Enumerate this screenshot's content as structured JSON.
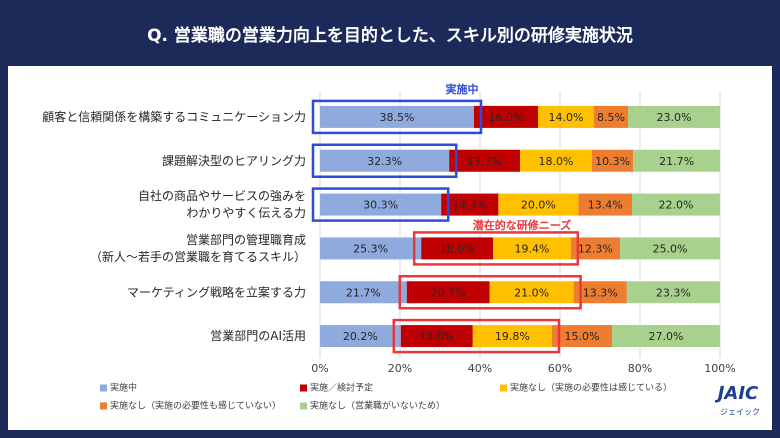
{
  "chart_data": {
    "type": "stacked-bar-horizontal",
    "title": "Q. 営業職の営業力向上を目的とした、スキル別の研修実施状況",
    "categories": [
      "顧客と信頼関係を構築するコミュニケーション力",
      "課題解決型のヒアリング力",
      "自社の商品やサービスの強みを\nわかりやすく伝える力",
      "営業部門の管理職育成\n（新人～若手の営業職を育てるスキル）",
      "マーケティング戦略を立案する力",
      "営業部門のAI活用"
    ],
    "series": [
      {
        "name": "実施中",
        "color": "#8faadc",
        "values": [
          38.5,
          32.3,
          30.3,
          25.3,
          21.7,
          20.2
        ],
        "value_labels": [
          "38.5%",
          "32.3%",
          "30.3%",
          "25.3%",
          "21.7%",
          "20.2%"
        ]
      },
      {
        "name": "実施／検討予定",
        "color": "#c00000",
        "values": [
          16.0,
          17.7,
          14.3,
          18.0,
          20.7,
          18.0
        ],
        "value_labels": [
          "16.0%",
          "17.7%",
          "14.3%",
          "18.0%",
          "20.7%",
          "18.0%"
        ]
      },
      {
        "name": "実施なし（実施の必要性は感じている）",
        "color": "#ffc000",
        "values": [
          14.0,
          18.0,
          20.0,
          19.4,
          21.0,
          19.8
        ],
        "value_labels": [
          "14.0%",
          "18.0%",
          "20.0%",
          "19.4%",
          "21.0%",
          "19.8%"
        ]
      },
      {
        "name": "実施なし（実施の必要性も感じていない）",
        "color": "#ed7d31",
        "values": [
          8.5,
          10.3,
          13.4,
          12.3,
          13.3,
          15.0
        ],
        "value_labels": [
          "8.5%",
          "10.3%",
          "13.4%",
          "12.3%",
          "13.3%",
          "15.0%"
        ]
      },
      {
        "name": "実施なし（営業職がいないため）",
        "color": "#a9d18e",
        "values": [
          23.0,
          21.7,
          22.0,
          25.0,
          23.3,
          27.0
        ],
        "value_labels": [
          "23.0%",
          "21.7%",
          "22.0%",
          "25.0%",
          "23.3%",
          "27.0%"
        ]
      }
    ],
    "xlim": [
      0,
      100
    ],
    "xticks": [
      {
        "value": 0,
        "label": "0%"
      },
      {
        "value": 20,
        "label": "20%"
      },
      {
        "value": 40,
        "label": "40%"
      },
      {
        "value": 60,
        "label": "60%"
      },
      {
        "value": 80,
        "label": "80%"
      },
      {
        "value": 100,
        "label": "100%"
      }
    ],
    "grid": true,
    "annotations": [
      {
        "text": "実施中",
        "color": "#2f4bd8"
      },
      {
        "text": "潜在的な研修ニーズ",
        "color": "#e8383d"
      }
    ]
  },
  "logo": {
    "name": "JAIC",
    "sub": "ジェイック"
  }
}
